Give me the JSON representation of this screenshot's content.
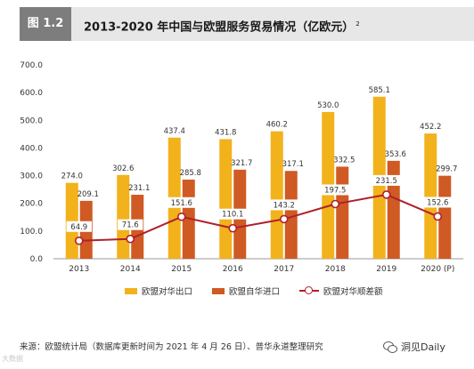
{
  "header": {
    "badge": "图 1.2",
    "title": "2013-2020 年中国与欧盟服务贸易情况（亿欧元）",
    "title_sup": "2"
  },
  "chart_data": {
    "type": "bar",
    "categories": [
      "2013",
      "2014",
      "2015",
      "2016",
      "2017",
      "2018",
      "2019",
      "2020 (P)"
    ],
    "ylim": [
      0,
      700
    ],
    "yticks": [
      "0.0",
      "100.0",
      "200.0",
      "300.0",
      "400.0",
      "500.0",
      "600.0",
      "700.0"
    ],
    "grid": false,
    "series": [
      {
        "name": "欧盟对华出口",
        "kind": "bar",
        "color": "#f2b21c",
        "values": [
          274.0,
          302.6,
          437.4,
          431.8,
          460.2,
          530.0,
          585.1,
          452.2
        ],
        "labels": [
          "274.0",
          "302.6",
          "437.4",
          "431.8",
          "460.2",
          "530.0",
          "585.1",
          "452.2"
        ]
      },
      {
        "name": "欧盟自华进口",
        "kind": "bar",
        "color": "#cf5a23",
        "values": [
          209.1,
          231.1,
          285.8,
          321.7,
          317.1,
          332.5,
          353.6,
          299.7
        ],
        "labels": [
          "209.1",
          "231.1",
          "285.8",
          "321.7",
          "317.1",
          "332.5",
          "353.6",
          "299.7"
        ]
      },
      {
        "name": "欧盟对华顺差额",
        "kind": "line",
        "color": "#b0202a",
        "values": [
          64.9,
          71.6,
          151.6,
          110.1,
          143.2,
          197.5,
          231.5,
          152.6
        ],
        "labels": [
          "64.9",
          "71.6",
          "151.6",
          "110.1",
          "143.2",
          "197.5",
          "231.5",
          "152.6"
        ]
      }
    ]
  },
  "legend": {
    "export": "欧盟对华出口",
    "import": "欧盟自华进口",
    "surplus": "欧盟对华顺差额"
  },
  "source": "来源：欧盟统计局（数据库更新时间为 2021 年 4 月 26 日）、普华永道整理研究",
  "footer": {
    "watermark": "大数据",
    "account": "洞见Daily"
  }
}
